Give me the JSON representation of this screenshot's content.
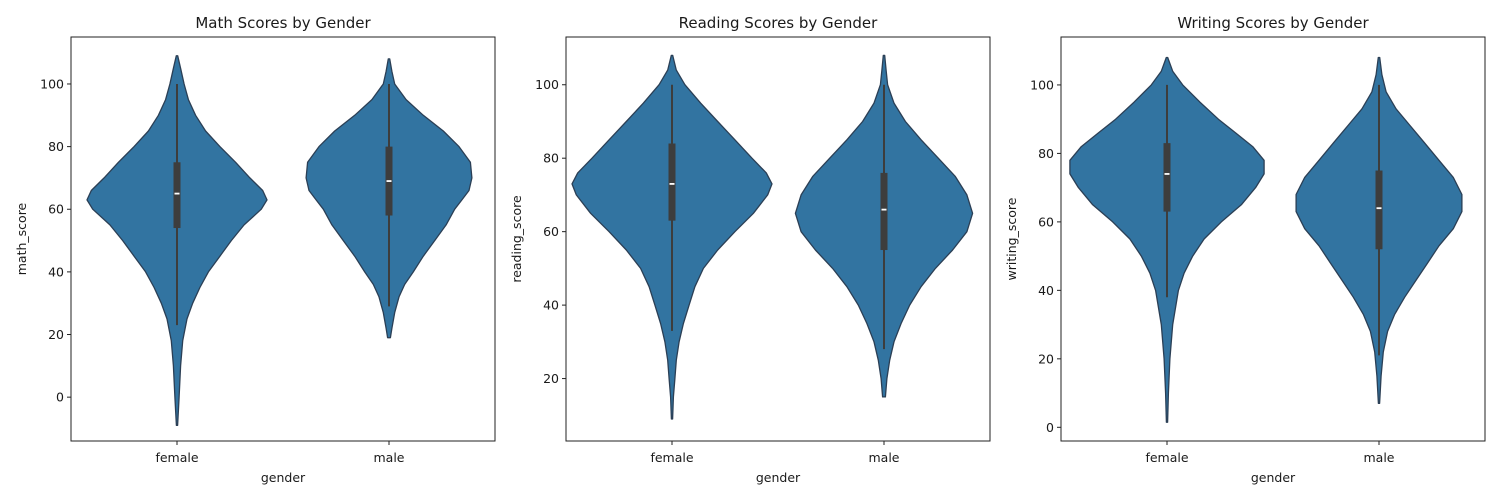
{
  "chart_data": [
    {
      "type": "violin",
      "title": "Math Scores by Gender",
      "xlabel": "gender",
      "ylabel": "math_score",
      "ylim": [
        -14,
        115
      ],
      "yticks": [
        0,
        20,
        40,
        60,
        80,
        100
      ],
      "categories": [
        "female",
        "male"
      ],
      "color": "#3274a1",
      "violins": [
        {
          "category": "female",
          "q1": 54,
          "median": 65,
          "q3": 75,
          "whisker_low": 23,
          "whisker_high": 100,
          "density": [
            [
              -9,
              0.4
            ],
            [
              0,
              1.5
            ],
            [
              10,
              2.5
            ],
            [
              18,
              4
            ],
            [
              25,
              7
            ],
            [
              30,
              11
            ],
            [
              35,
              16
            ],
            [
              40,
              22
            ],
            [
              45,
              30
            ],
            [
              50,
              38
            ],
            [
              55,
              47
            ],
            [
              60,
              59
            ],
            [
              63,
              63
            ],
            [
              66,
              60
            ],
            [
              70,
              51
            ],
            [
              75,
              41
            ],
            [
              80,
              30
            ],
            [
              85,
              20
            ],
            [
              90,
              13
            ],
            [
              95,
              8
            ],
            [
              100,
              5
            ],
            [
              105,
              2.5
            ],
            [
              109,
              0.5
            ]
          ]
        },
        {
          "category": "male",
          "q1": 58,
          "median": 69,
          "q3": 80,
          "whisker_low": 29,
          "whisker_high": 100,
          "density": [
            [
              19,
              1
            ],
            [
              22,
              2
            ],
            [
              27,
              4
            ],
            [
              32,
              7
            ],
            [
              36,
              11
            ],
            [
              40,
              17
            ],
            [
              45,
              24
            ],
            [
              50,
              32
            ],
            [
              55,
              40
            ],
            [
              60,
              46
            ],
            [
              63,
              51
            ],
            [
              66,
              56
            ],
            [
              70,
              58
            ],
            [
              75,
              57
            ],
            [
              80,
              49
            ],
            [
              85,
              38
            ],
            [
              90,
              24
            ],
            [
              95,
              12
            ],
            [
              100,
              4
            ],
            [
              104,
              2
            ],
            [
              108,
              0.5
            ]
          ]
        }
      ]
    },
    {
      "type": "violin",
      "title": "Reading Scores by Gender",
      "xlabel": "gender",
      "ylabel": "reading_score",
      "ylim": [
        3,
        113
      ],
      "yticks": [
        20,
        40,
        60,
        80,
        100
      ],
      "categories": [
        "female",
        "male"
      ],
      "color": "#3274a1",
      "violins": [
        {
          "category": "female",
          "q1": 63,
          "median": 73,
          "q3": 84,
          "whisker_low": 33,
          "whisker_high": 100,
          "density": [
            [
              9,
              0.4
            ],
            [
              15,
              1
            ],
            [
              20,
              2
            ],
            [
              25,
              3
            ],
            [
              30,
              5
            ],
            [
              35,
              8
            ],
            [
              40,
              12
            ],
            [
              45,
              16
            ],
            [
              50,
              22
            ],
            [
              55,
              32
            ],
            [
              60,
              44
            ],
            [
              65,
              57
            ],
            [
              70,
              67
            ],
            [
              73,
              70
            ],
            [
              76,
              66
            ],
            [
              80,
              56
            ],
            [
              85,
              44
            ],
            [
              90,
              32
            ],
            [
              95,
              20
            ],
            [
              100,
              9
            ],
            [
              104,
              3
            ],
            [
              108,
              0.5
            ]
          ]
        },
        {
          "category": "male",
          "q1": 55,
          "median": 66,
          "q3": 76,
          "whisker_low": 28,
          "whisker_high": 100,
          "density": [
            [
              15,
              1
            ],
            [
              20,
              2
            ],
            [
              25,
              4
            ],
            [
              30,
              7
            ],
            [
              35,
              12
            ],
            [
              40,
              18
            ],
            [
              45,
              26
            ],
            [
              50,
              36
            ],
            [
              55,
              48
            ],
            [
              60,
              58
            ],
            [
              65,
              62
            ],
            [
              70,
              58
            ],
            [
              75,
              50
            ],
            [
              80,
              38
            ],
            [
              85,
              26
            ],
            [
              90,
              15
            ],
            [
              95,
              7
            ],
            [
              100,
              2.5
            ],
            [
              104,
              1.5
            ],
            [
              108,
              0.5
            ]
          ]
        }
      ]
    },
    {
      "type": "violin",
      "title": "Writing Scores by Gender",
      "xlabel": "gender",
      "ylabel": "writing_score",
      "ylim": [
        -4,
        114
      ],
      "yticks": [
        0,
        20,
        40,
        60,
        80,
        100
      ],
      "categories": [
        "female",
        "male"
      ],
      "color": "#3274a1",
      "violins": [
        {
          "category": "female",
          "q1": 63,
          "median": 74,
          "q3": 83,
          "whisker_low": 38,
          "whisker_high": 100,
          "density": [
            [
              1.5,
              0.4
            ],
            [
              10,
              1
            ],
            [
              20,
              2
            ],
            [
              30,
              4
            ],
            [
              40,
              8
            ],
            [
              45,
              12
            ],
            [
              50,
              18
            ],
            [
              55,
              26
            ],
            [
              60,
              38
            ],
            [
              65,
              52
            ],
            [
              70,
              62
            ],
            [
              74,
              68
            ],
            [
              78,
              68
            ],
            [
              82,
              60
            ],
            [
              86,
              48
            ],
            [
              90,
              36
            ],
            [
              95,
              23
            ],
            [
              100,
              11
            ],
            [
              104,
              4
            ],
            [
              108,
              0.5
            ]
          ]
        },
        {
          "category": "male",
          "q1": 52,
          "median": 64,
          "q3": 75,
          "whisker_low": 21,
          "whisker_high": 100,
          "density": [
            [
              7,
              0.4
            ],
            [
              15,
              1.5
            ],
            [
              22,
              3
            ],
            [
              28,
              6
            ],
            [
              33,
              11
            ],
            [
              38,
              18
            ],
            [
              43,
              26
            ],
            [
              48,
              34
            ],
            [
              53,
              42
            ],
            [
              58,
              52
            ],
            [
              63,
              58
            ],
            [
              68,
              58
            ],
            [
              73,
              52
            ],
            [
              78,
              42
            ],
            [
              83,
              32
            ],
            [
              88,
              22
            ],
            [
              93,
              12
            ],
            [
              98,
              5
            ],
            [
              103,
              2
            ],
            [
              108,
              0.5
            ]
          ]
        }
      ]
    }
  ]
}
